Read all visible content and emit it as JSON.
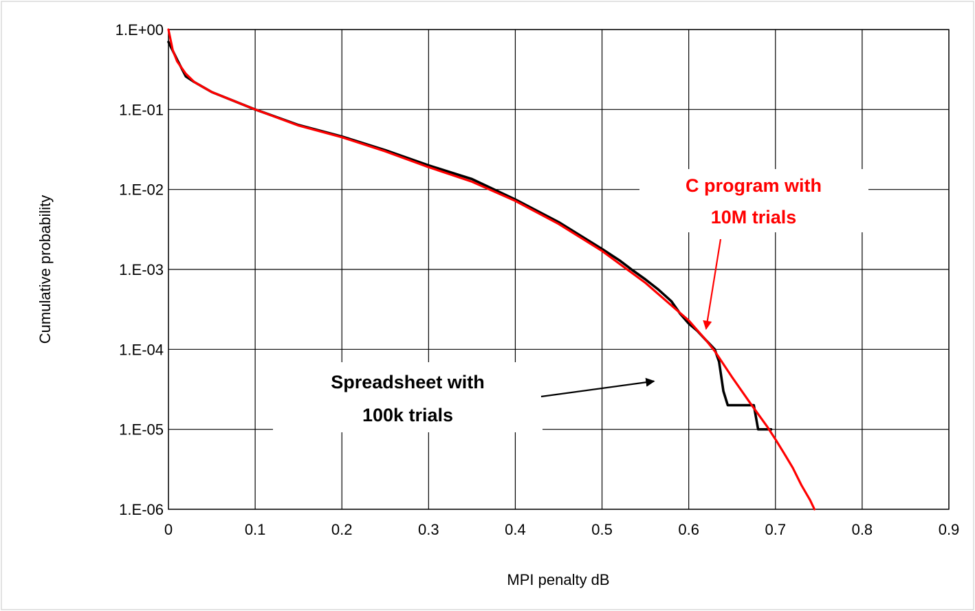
{
  "chart_data": {
    "type": "line",
    "xlabel": "MPI penalty dB",
    "ylabel": "Cumulative probability",
    "xlim": [
      0,
      0.9
    ],
    "ylim": [
      1e-06,
      1
    ],
    "yscale": "log",
    "grid": true,
    "x_ticks": [
      0,
      0.1,
      0.2,
      0.3,
      0.4,
      0.5,
      0.6,
      0.7,
      0.8,
      0.9
    ],
    "x_tick_labels": [
      "0",
      "0.1",
      "0.2",
      "0.3",
      "0.4",
      "0.5",
      "0.6",
      "0.7",
      "0.8",
      "0.9"
    ],
    "y_ticks": [
      1,
      0.1,
      0.01,
      0.001,
      0.0001,
      1e-05,
      1e-06
    ],
    "y_tick_labels": [
      "1.E+00",
      "1.E-01",
      "1.E-02",
      "1.E-03",
      "1.E-04",
      "1.E-05",
      "1.E-06"
    ],
    "series": [
      {
        "color": "#000000",
        "x": [
          0,
          0.01,
          0.02,
          0.03,
          0.05,
          0.1,
          0.15,
          0.2,
          0.25,
          0.3,
          0.35,
          0.4,
          0.45,
          0.5,
          0.52,
          0.535,
          0.55,
          0.565,
          0.58,
          0.59,
          0.6,
          0.61,
          0.62,
          0.63,
          0.635,
          0.64,
          0.645,
          0.65,
          0.665,
          0.675,
          0.68,
          0.69,
          0.695
        ],
        "y": [
          0.7,
          0.42,
          0.26,
          0.22,
          0.165,
          0.1,
          0.064,
          0.046,
          0.031,
          0.02,
          0.0135,
          0.0075,
          0.0039,
          0.0018,
          0.0013,
          0.00098,
          0.00075,
          0.00056,
          0.0004,
          0.00028,
          0.00021,
          0.00017,
          0.00013,
          0.0001,
          7e-05,
          3e-05,
          2e-05,
          2e-05,
          2e-05,
          2e-05,
          1e-05,
          1e-05,
          1e-05
        ]
      },
      {
        "color": "#ff0000",
        "x": [
          0,
          0.005,
          0.01,
          0.02,
          0.03,
          0.05,
          0.1,
          0.15,
          0.2,
          0.25,
          0.3,
          0.35,
          0.4,
          0.45,
          0.5,
          0.55,
          0.6,
          0.62,
          0.63,
          0.65,
          0.67,
          0.69,
          0.7,
          0.71,
          0.72,
          0.73,
          0.74,
          0.745
        ],
        "y": [
          1.0,
          0.55,
          0.4,
          0.28,
          0.22,
          0.165,
          0.1,
          0.063,
          0.045,
          0.03,
          0.019,
          0.0125,
          0.0072,
          0.0037,
          0.0017,
          0.00068,
          0.00023,
          0.00013,
          9.5e-05,
          4.5e-05,
          2.2e-05,
          1.1e-05,
          7.5e-06,
          5e-06,
          3.3e-06,
          2e-06,
          1.3e-06,
          1e-06
        ]
      }
    ],
    "annotations": [
      {
        "lines": [
          "C program with",
          "10M trials"
        ],
        "color": "#ff0000",
        "arrow_to": [
          0.62,
          0.00018
        ]
      },
      {
        "lines": [
          "Spreadsheet with",
          "100k trials"
        ],
        "color": "#000000",
        "arrow_to": [
          0.56,
          4e-05
        ]
      }
    ]
  }
}
